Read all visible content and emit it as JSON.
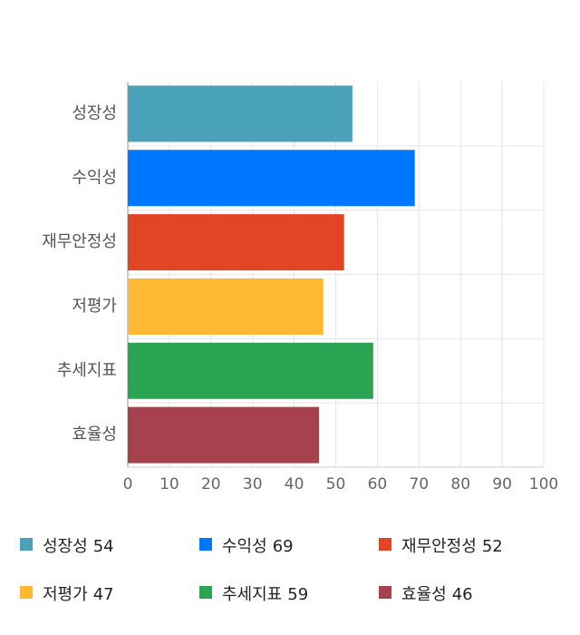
{
  "chart_data": {
    "type": "bar",
    "orientation": "horizontal",
    "categories": [
      "성장성",
      "수익성",
      "재무안정성",
      "저평가",
      "추세지표",
      "효율성"
    ],
    "values": [
      54,
      69,
      52,
      47,
      59,
      46
    ],
    "colors": [
      "#4aa2ba",
      "#0077ff",
      "#e14524",
      "#fdb834",
      "#2ba553",
      "#a6414e"
    ],
    "xlim": [
      0,
      100
    ],
    "xticks": [
      0,
      10,
      20,
      30,
      40,
      50,
      60,
      70,
      80,
      90,
      100
    ],
    "grid": true,
    "legend": "bottom"
  }
}
